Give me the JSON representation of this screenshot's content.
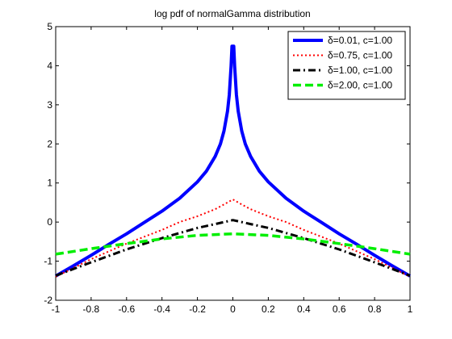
{
  "chart_data": {
    "type": "line",
    "title": "log pdf of normalGamma distribution",
    "xlabel": "",
    "ylabel": "",
    "xlim": [
      -1,
      1
    ],
    "ylim": [
      -2,
      5
    ],
    "x_ticks": [
      "-1",
      "-0.8",
      "-0.6",
      "-0.4",
      "-0.2",
      "0",
      "0.2",
      "0.4",
      "0.6",
      "0.8",
      "1"
    ],
    "y_ticks": [
      "-2",
      "-1",
      "0",
      "1",
      "2",
      "3",
      "4",
      "5"
    ],
    "grid": false,
    "legend_position": "top-right",
    "series": [
      {
        "name": "δ=0.01, c=1.00",
        "color": "#0000ff",
        "dash": "solid",
        "points": [
          [
            -1,
            -1.38
          ],
          [
            -0.9,
            -1.12
          ],
          [
            -0.8,
            -0.85
          ],
          [
            -0.7,
            -0.57
          ],
          [
            -0.6,
            -0.3
          ],
          [
            -0.5,
            -0.01
          ],
          [
            -0.4,
            0.28
          ],
          [
            -0.3,
            0.61
          ],
          [
            -0.2,
            1.03
          ],
          [
            -0.15,
            1.3
          ],
          [
            -0.1,
            1.68
          ],
          [
            -0.07,
            2.0
          ],
          [
            -0.05,
            2.33
          ],
          [
            -0.03,
            2.84
          ],
          [
            -0.02,
            3.26
          ],
          [
            -0.01,
            3.99
          ],
          [
            -0.005,
            4.5
          ],
          [
            0,
            4.5
          ],
          [
            0.005,
            4.5
          ],
          [
            0.01,
            3.99
          ],
          [
            0.02,
            3.26
          ],
          [
            0.03,
            2.84
          ],
          [
            0.05,
            2.33
          ],
          [
            0.07,
            2.0
          ],
          [
            0.1,
            1.68
          ],
          [
            0.15,
            1.3
          ],
          [
            0.2,
            1.03
          ],
          [
            0.3,
            0.61
          ],
          [
            0.4,
            0.28
          ],
          [
            0.5,
            -0.01
          ],
          [
            0.6,
            -0.3
          ],
          [
            0.7,
            -0.57
          ],
          [
            0.8,
            -0.85
          ],
          [
            0.9,
            -1.12
          ],
          [
            1,
            -1.38
          ]
        ]
      },
      {
        "name": "δ=0.75, c=1.00",
        "color": "#ff0000",
        "dash": "dotted",
        "points": [
          [
            -1,
            -1.4
          ],
          [
            -0.8,
            -0.95
          ],
          [
            -0.6,
            -0.55
          ],
          [
            -0.4,
            -0.2
          ],
          [
            -0.3,
            0.0
          ],
          [
            -0.2,
            0.15
          ],
          [
            -0.1,
            0.33
          ],
          [
            -0.05,
            0.45
          ],
          [
            0,
            0.58
          ],
          [
            0.05,
            0.45
          ],
          [
            0.1,
            0.33
          ],
          [
            0.2,
            0.15
          ],
          [
            0.3,
            0.0
          ],
          [
            0.4,
            -0.2
          ],
          [
            0.6,
            -0.55
          ],
          [
            0.8,
            -0.95
          ],
          [
            1,
            -1.4
          ]
        ]
      },
      {
        "name": "δ=1.00, c=1.00",
        "color": "#000000",
        "dash": "dashdot",
        "points": [
          [
            -1,
            -1.37
          ],
          [
            -0.8,
            -1.03
          ],
          [
            -0.6,
            -0.7
          ],
          [
            -0.4,
            -0.41
          ],
          [
            -0.2,
            -0.15
          ],
          [
            -0.1,
            -0.05
          ],
          [
            0,
            0.05
          ],
          [
            0.1,
            -0.05
          ],
          [
            0.2,
            -0.15
          ],
          [
            0.4,
            -0.41
          ],
          [
            0.6,
            -0.7
          ],
          [
            0.8,
            -1.03
          ],
          [
            1,
            -1.37
          ]
        ]
      },
      {
        "name": "δ=2.00, c=1.00",
        "color": "#00ee00",
        "dash": "dashed",
        "points": [
          [
            -1,
            -0.82
          ],
          [
            -0.8,
            -0.68
          ],
          [
            -0.6,
            -0.55
          ],
          [
            -0.4,
            -0.43
          ],
          [
            -0.2,
            -0.34
          ],
          [
            0,
            -0.3
          ],
          [
            0.2,
            -0.34
          ],
          [
            0.4,
            -0.43
          ],
          [
            0.6,
            -0.55
          ],
          [
            0.8,
            -0.68
          ],
          [
            1,
            -0.82
          ]
        ]
      }
    ]
  }
}
